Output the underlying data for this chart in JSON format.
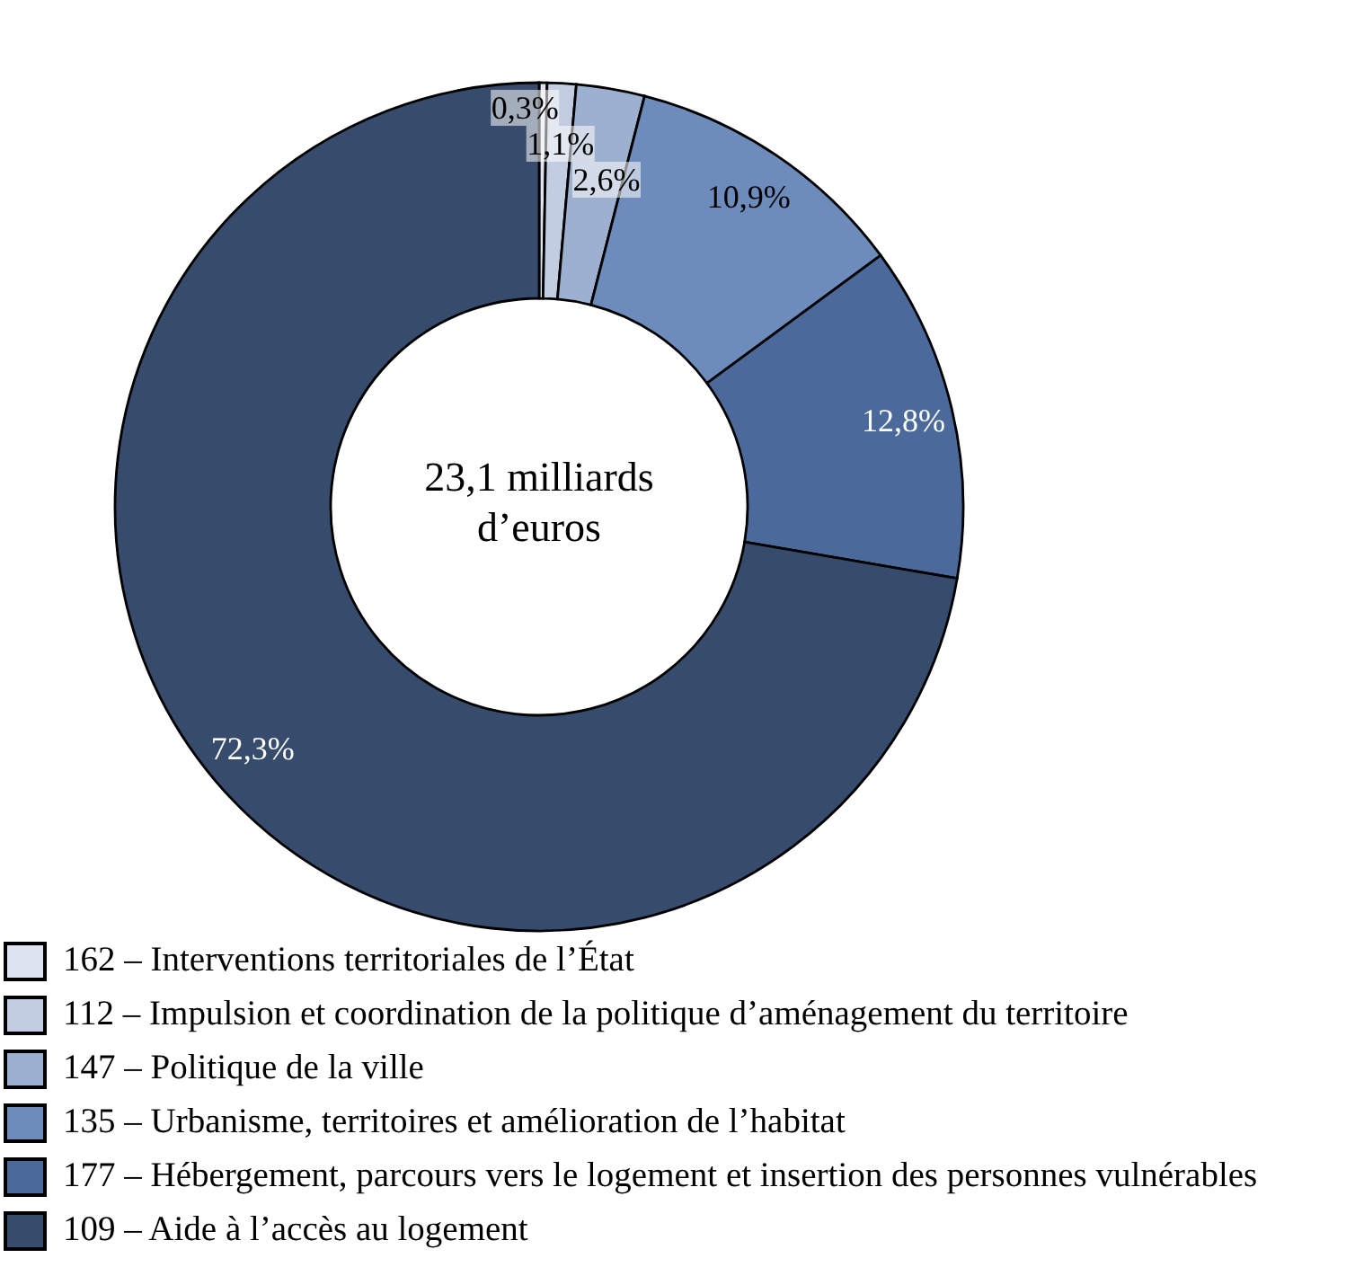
{
  "chart_data": {
    "type": "donut",
    "categories": [
      "162 – Interventions territoriales de l’État",
      "112 – Impulsion et coordination de la politique d’aménagement du territoire",
      "147 – Politique de la ville",
      "135 – Urbanisme, territoires et amélioration de l’habitat",
      "177 – Hébergement, parcours vers le logement et insertion des personnes vulnérables",
      "109 – Aide à l’accès au logement"
    ],
    "values": [
      0.3,
      1.1,
      2.6,
      10.9,
      12.8,
      72.3
    ],
    "colors": [
      "#dde4ef",
      "#c2cde1",
      "#9eb0cf",
      "#6d8cbb",
      "#4b6a9b",
      "#374b6c"
    ],
    "value_labels": [
      "0,3%",
      "1,1%",
      "2,6%",
      "10,9%",
      "12,8%",
      "72,3%"
    ],
    "annotations": [
      "23,1 milliards d’euros"
    ],
    "legend": "bottom"
  }
}
